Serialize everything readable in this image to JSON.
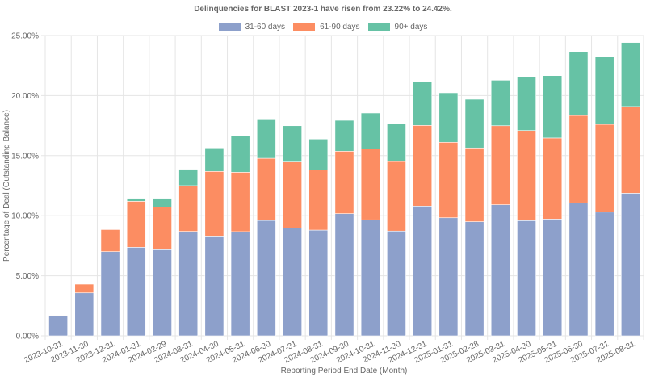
{
  "chart_data": {
    "type": "bar",
    "stacked": true,
    "title": "Delinquencies for BLAST 2023-1 have risen from 23.22% to 24.42%.",
    "xlabel": "Reporting Period End Date (Month)",
    "ylabel": "Percentage of Deal (Outstanding Balance)",
    "ylim": [
      0,
      25
    ],
    "yticks": [
      "0.00%",
      "5.00%",
      "10.00%",
      "15.00%",
      "20.00%",
      "25.00%"
    ],
    "ytick_values": [
      0,
      5,
      10,
      15,
      20,
      25
    ],
    "grid": true,
    "legend_position": "top-center",
    "categories": [
      "2023-10-31",
      "2023-11-30",
      "2023-12-31",
      "2024-01-31",
      "2024-02-29",
      "2024-03-31",
      "2024-04-30",
      "2024-05-31",
      "2024-06-30",
      "2024-07-31",
      "2024-08-31",
      "2024-09-30",
      "2024-10-31",
      "2024-11-30",
      "2024-12-31",
      "2025-01-31",
      "2025-02-28",
      "2025-03-31",
      "2025-04-30",
      "2025-05-31",
      "2025-06-30",
      "2025-07-31",
      "2025-08-31"
    ],
    "series": [
      {
        "name": "31-60 days",
        "color": "#8da0cb",
        "values": [
          1.68,
          3.58,
          7.01,
          7.37,
          7.17,
          8.69,
          8.31,
          8.67,
          9.61,
          8.96,
          8.8,
          10.17,
          9.66,
          8.72,
          10.8,
          9.83,
          9.5,
          10.91,
          9.59,
          9.72,
          11.07,
          10.3,
          11.87
        ]
      },
      {
        "name": "61-90 days",
        "color": "#fc8d62",
        "values": [
          0.04,
          0.72,
          1.84,
          3.83,
          3.54,
          3.81,
          5.38,
          4.95,
          5.17,
          5.51,
          5.02,
          5.2,
          5.91,
          5.8,
          6.72,
          6.28,
          6.14,
          6.58,
          7.5,
          6.75,
          7.28,
          7.31,
          7.22
        ]
      },
      {
        "name": "90+ days",
        "color": "#66c2a5",
        "values": [
          0.0,
          0.0,
          0.04,
          0.25,
          0.74,
          1.37,
          1.95,
          3.03,
          3.21,
          3.02,
          2.56,
          2.57,
          2.98,
          3.15,
          3.65,
          4.12,
          4.05,
          3.79,
          4.44,
          5.19,
          5.28,
          5.61,
          5.33
        ]
      }
    ]
  }
}
